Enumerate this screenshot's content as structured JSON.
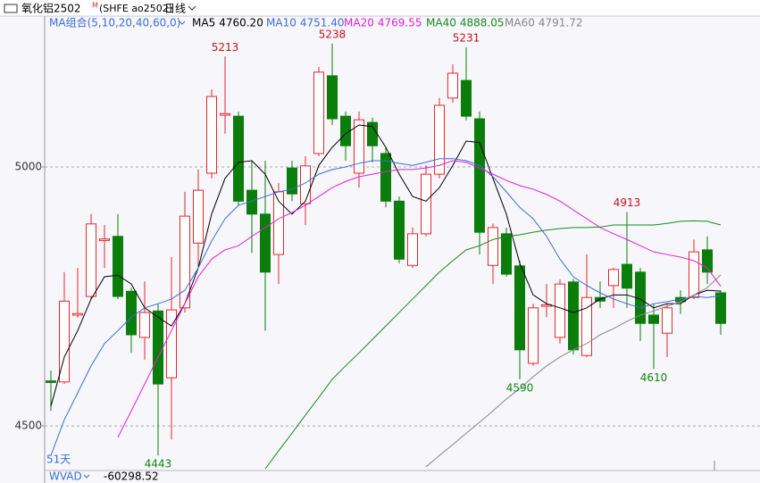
{
  "header": {
    "title": "氧化铝2502",
    "marker": "M",
    "code": "(SHFE  ao2502)",
    "period": "日线"
  },
  "chart_data": {
    "type": "candlestick",
    "ma_label": "MA组合(5,10,20,40,60,0)",
    "open": [
      4587,
      4585,
      4714,
      4750,
      4858,
      4866,
      4760,
      4671,
      4722,
      4593,
      4728,
      4853,
      4988,
      5100,
      5098,
      4955,
      4909,
      4831,
      4998,
      4929,
      5026,
      5176,
      5098,
      4988,
      5086,
      5026,
      4934,
      4810,
      4871,
      4986,
      5133,
      5167,
      5093,
      4810,
      4871,
      4809,
      4621,
      4731,
      4671,
      4778,
      4636,
      4748,
      4771,
      4812,
      4797,
      4714,
      4679,
      4748,
      4748,
      4840,
      4757
    ],
    "close": [
      4584,
      4741,
      4717,
      4890,
      4861,
      4750,
      4676,
      4719,
      4581,
      4724,
      4905,
      4955,
      5136,
      5103,
      4934,
      4909,
      4797,
      4952,
      4948,
      5002,
      5183,
      5093,
      5041,
      5091,
      5041,
      4934,
      4822,
      4871,
      4986,
      5119,
      5181,
      5098,
      4874,
      4883,
      4793,
      4647,
      4728,
      4734,
      4774,
      4647,
      4748,
      4741,
      4802,
      4766,
      4698,
      4698,
      4728,
      4740,
      4836,
      4797,
      4698
    ],
    "high": [
      4607,
      4797,
      4805,
      4909,
      4888,
      4909,
      4767,
      4779,
      4736,
      4826,
      4952,
      4995,
      5150,
      5213,
      5107,
      5012,
      5012,
      4969,
      5012,
      5021,
      5193,
      5238,
      5107,
      5107,
      5095,
      5038,
      4943,
      4883,
      5003,
      5133,
      5198,
      5231,
      5107,
      4891,
      4883,
      4819,
      4736,
      4774,
      4783,
      4784,
      4831,
      4779,
      4805,
      4913,
      4805,
      4736,
      4736,
      4762,
      4860,
      4866,
      4762
    ],
    "low": [
      4529,
      4581,
      4709,
      4745,
      4805,
      4745,
      4641,
      4628,
      4443,
      4474,
      4719,
      4805,
      4978,
      5064,
      4926,
      4834,
      4684,
      4774,
      4934,
      4888,
      5021,
      5081,
      5012,
      4960,
      5009,
      4922,
      4814,
      4805,
      4866,
      4978,
      5124,
      5090,
      4831,
      4774,
      4788,
      4590,
      4616,
      4710,
      4659,
      4638,
      4633,
      4728,
      4728,
      4728,
      4664,
      4610,
      4633,
      4716,
      4745,
      4774,
      4676
    ],
    "up_color": "#e8262c",
    "down_color": "#0b7d0b",
    "series": [
      {
        "name": "MA5",
        "color": "#000000",
        "latest_label": "4760.20",
        "values": [
          4538,
          4633,
          4684,
          4745,
          4788,
          4791,
          4774,
          4728,
          4710,
          4693,
          4736,
          4805,
          4909,
          4978,
          5009,
          5012,
          4986,
          4934,
          4909,
          4934,
          5003,
          5038,
          5064,
          5081,
          5078,
          5038,
          4986,
          4943,
          4934,
          4960,
          5003,
          5050,
          5047,
          4978,
          4909,
          4814,
          4753,
          4736,
          4728,
          4719,
          4728,
          4745,
          4753,
          4753,
          4745,
          4728,
          4736,
          4736,
          4753,
          4762,
          4760.2
        ]
      },
      {
        "name": "MA10",
        "color": "#3a6fd8",
        "latest_label": "4751.40",
        "values": [
          4443,
          4512,
          4564,
          4616,
          4659,
          4684,
          4710,
          4728,
          4736,
          4745,
          4762,
          4805,
          4857,
          4900,
          4926,
          4934,
          4943,
          4952,
          4957,
          4969,
          4986,
          4995,
          5000,
          5007,
          5012,
          5012,
          5007,
          5003,
          5009,
          5016,
          5016,
          5012,
          5003,
          4981,
          4952,
          4922,
          4900,
          4866,
          4822,
          4788,
          4771,
          4757,
          4745,
          4736,
          4728,
          4736,
          4740,
          4745,
          4750,
          4748,
          4751.4
        ]
      },
      {
        "name": "MA20",
        "color": "#e020e0",
        "latest_label": "4769.55",
        "values": [
          null,
          null,
          null,
          null,
          null,
          4478,
          4529,
          4581,
          4633,
          4684,
          4736,
          4788,
          4822,
          4840,
          4848,
          4866,
          4883,
          4900,
          4912,
          4926,
          4943,
          4960,
          4972,
          4981,
          4986,
          4991,
          4995,
          4995,
          4998,
          5003,
          5012,
          5009,
          4998,
          4986,
          4974,
          4964,
          4957,
          4947,
          4934,
          4917,
          4900,
          4883,
          4871,
          4860,
          4848,
          4836,
          4831,
          4826,
          4819,
          4805,
          4769.55
        ]
      },
      {
        "name": "MA40",
        "color": "#1a8a1a",
        "latest_label": "4888.05",
        "values": [
          null,
          null,
          null,
          null,
          null,
          null,
          null,
          null,
          null,
          null,
          null,
          null,
          null,
          null,
          null,
          null,
          4417,
          4452,
          4486,
          4521,
          4555,
          4590,
          4616,
          4641,
          4667,
          4693,
          4719,
          4745,
          4771,
          4797,
          4819,
          4840,
          4848,
          4860,
          4866,
          4869,
          4874,
          4878,
          4881,
          4883,
          4883,
          4884,
          4888,
          4888,
          4888,
          4888,
          4891,
          4895,
          4896,
          4895,
          4888.05
        ]
      },
      {
        "name": "MA60",
        "color": "#888888",
        "latest_label": "4791.72",
        "values": [
          null,
          null,
          null,
          null,
          null,
          null,
          null,
          null,
          null,
          null,
          null,
          null,
          null,
          null,
          null,
          null,
          null,
          null,
          null,
          null,
          null,
          null,
          null,
          null,
          null,
          null,
          null,
          null,
          4421,
          4443,
          4464,
          4486,
          4507,
          4529,
          4552,
          4572,
          4595,
          4616,
          4633,
          4647,
          4659,
          4676,
          4688,
          4702,
          4714,
          4722,
          4731,
          4740,
          4753,
          4767,
          4791.72
        ]
      }
    ],
    "ylim": [
      4414,
      5262
    ],
    "yticks": [
      4500,
      5000
    ],
    "grid": true,
    "high_labels": [
      5213,
      5238,
      5231,
      4913
    ],
    "low_labels": [
      4443,
      4590,
      4610
    ],
    "span_label": "51天"
  },
  "indicator": {
    "name": "WVAD",
    "value": -60298.52
  }
}
